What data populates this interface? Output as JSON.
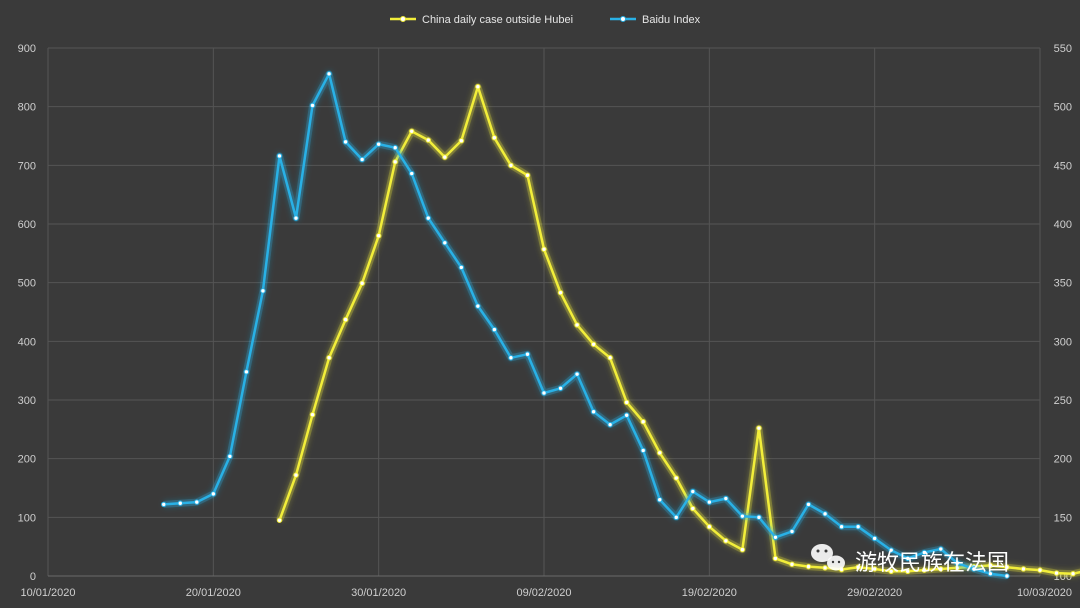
{
  "chart_data": {
    "type": "line",
    "legend_position": "top",
    "grid": true,
    "x_ticks": [
      "10/01/2020",
      "20/01/2020",
      "30/01/2020",
      "09/02/2020",
      "19/02/2020",
      "29/02/2020",
      "10/03/2020"
    ],
    "x_range": [
      0,
      60
    ],
    "y_left": {
      "range": [
        0,
        900
      ],
      "ticks": [
        0,
        100,
        200,
        300,
        400,
        500,
        600,
        700,
        800,
        900
      ]
    },
    "y_right": {
      "range": [
        100,
        550
      ],
      "ticks": [
        100,
        150,
        200,
        250,
        300,
        350,
        400,
        450,
        500,
        550
      ]
    },
    "series": [
      {
        "name": "China daily case outside Hubei",
        "color": "#f2ee3a",
        "axis": "left",
        "start_day": 14,
        "values": [
          95,
          172,
          275,
          372,
          437,
          499,
          580,
          706,
          758,
          743,
          714,
          742,
          834,
          747,
          700,
          683,
          557,
          483,
          428,
          395,
          372,
          296,
          263,
          210,
          167,
          115,
          84,
          60,
          45,
          252,
          30,
          20,
          16,
          14,
          11,
          15,
          12,
          8,
          8,
          10,
          12,
          14,
          16,
          18,
          15,
          12,
          10,
          5,
          4,
          10,
          8
        ]
      },
      {
        "name": "Baidu Index",
        "color": "#29b1e6",
        "axis": "right",
        "start_day": 7,
        "values": [
          161,
          162,
          163,
          170,
          202,
          274,
          343,
          458,
          405,
          501,
          528,
          470,
          455,
          468,
          465,
          443,
          405,
          384,
          363,
          330,
          310,
          286,
          289,
          256,
          260,
          272,
          240,
          229,
          237,
          207,
          165,
          150,
          172,
          163,
          166,
          151,
          150,
          133,
          138,
          161,
          153,
          142,
          142,
          132,
          122,
          115,
          120,
          123,
          111,
          106,
          102,
          100
        ]
      }
    ]
  },
  "watermark": {
    "text": "游牧民族在法国",
    "icon": "wechat-icon"
  }
}
